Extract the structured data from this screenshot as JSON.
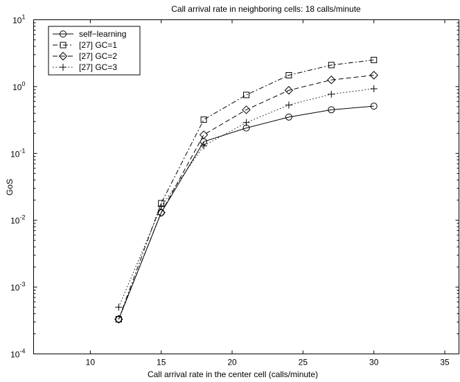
{
  "chart_data": {
    "type": "line",
    "title": "Call arrival rate in neighboring cells: 18 calls/minute",
    "xlabel": "Call arrival rate in the center cell (calls/minute)",
    "ylabel": "GoS",
    "xlim": [
      6,
      36
    ],
    "ylim": [
      0.0001,
      10
    ],
    "yscale": "log",
    "x_ticks": [
      10,
      15,
      20,
      25,
      30,
      35
    ],
    "y_ticks": [
      {
        "base": "10",
        "exp": "-4",
        "value": 0.0001
      },
      {
        "base": "10",
        "exp": "-3",
        "value": 0.001
      },
      {
        "base": "10",
        "exp": "-2",
        "value": 0.01
      },
      {
        "base": "10",
        "exp": "-1",
        "value": 0.1
      },
      {
        "base": "10",
        "exp": "0",
        "value": 1
      },
      {
        "base": "10",
        "exp": "1",
        "value": 10
      }
    ],
    "grid": false,
    "legend_position": "top-left",
    "x": [
      12,
      15,
      18,
      21,
      24,
      27,
      30
    ],
    "series": [
      {
        "name": "self−learning",
        "marker": "circle",
        "linestyle": "solid",
        "values": [
          0.00033,
          0.013,
          0.15,
          0.24,
          0.35,
          0.45,
          0.51
        ]
      },
      {
        "name": "[27] GC=1",
        "marker": "square",
        "linestyle": "dashdot",
        "values": [
          0.00033,
          0.018,
          0.32,
          0.75,
          1.48,
          2.1,
          2.5
        ]
      },
      {
        "name": "[27] GC=2",
        "marker": "diamond",
        "linestyle": "dashed",
        "values": [
          0.00033,
          0.013,
          0.19,
          0.45,
          0.88,
          1.26,
          1.48
        ]
      },
      {
        "name": "[27] GC=3",
        "marker": "plus",
        "linestyle": "dotted",
        "values": [
          0.0005,
          0.016,
          0.13,
          0.29,
          0.53,
          0.77,
          0.93
        ]
      }
    ]
  }
}
